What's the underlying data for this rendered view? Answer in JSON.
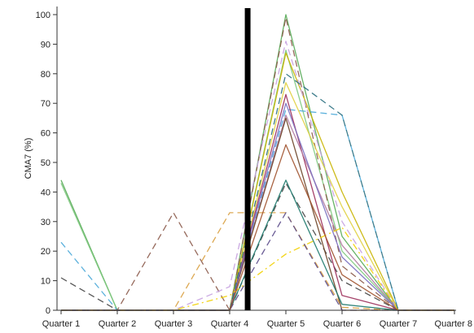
{
  "chart_data": {
    "type": "line",
    "title": "",
    "xlabel": "",
    "ylabel": "CMA7 (%)",
    "categories": [
      "Quarter 1",
      "Quarter 2",
      "Quarter 3",
      "Quarter 4",
      "Quarter 5",
      "Quarter 6",
      "Quarter 7",
      "Quarter 8"
    ],
    "ylim": [
      0,
      100
    ],
    "yticks": [
      "0",
      "10",
      "20",
      "30",
      "40",
      "50",
      "60",
      "70",
      "80",
      "90",
      "100"
    ],
    "grid": false,
    "legend": "none",
    "divider_after_category": "Quarter 4",
    "divider_color": "#000000",
    "series": [
      {
        "values": [
          44,
          0,
          0,
          0,
          100,
          25,
          0,
          0
        ],
        "color": "#55aa55",
        "dash": "solid"
      },
      {
        "values": [
          43,
          0,
          0,
          0,
          88,
          20,
          0,
          0
        ],
        "color": "#7fc97f",
        "dash": "solid"
      },
      {
        "values": [
          23,
          0,
          0,
          0,
          68,
          66,
          0,
          0
        ],
        "color": "#4aa8d8",
        "dash": "dash"
      },
      {
        "values": [
          11,
          0,
          0,
          0,
          43,
          10,
          0,
          0
        ],
        "color": "#444444",
        "dash": "dash"
      },
      {
        "values": [
          0,
          0,
          33,
          0,
          99,
          15,
          0,
          0
        ],
        "color": "#8b5a4a",
        "dash": "dash"
      },
      {
        "values": [
          0,
          0,
          0,
          33,
          33,
          1,
          0,
          0
        ],
        "color": "#d9a040",
        "dash": "dash"
      },
      {
        "values": [
          0,
          0,
          0,
          0,
          87,
          40,
          0,
          0
        ],
        "color": "#c8b400",
        "dash": "solid"
      },
      {
        "values": [
          0,
          0,
          0,
          0,
          77,
          35,
          0,
          0
        ],
        "color": "#e0d040",
        "dash": "solid"
      },
      {
        "values": [
          0,
          0,
          0,
          0,
          73,
          5,
          0,
          0
        ],
        "color": "#9b2d5a",
        "dash": "solid"
      },
      {
        "values": [
          0,
          0,
          0,
          0,
          66,
          22,
          0,
          0
        ],
        "color": "#b07aa1",
        "dash": "solid"
      },
      {
        "values": [
          0,
          0,
          0,
          0,
          65,
          0,
          0,
          0
        ],
        "color": "#6b4226",
        "dash": "solid"
      },
      {
        "values": [
          0,
          0,
          0,
          0,
          70,
          18,
          0,
          0
        ],
        "color": "#7a6fc0",
        "dash": "solid"
      },
      {
        "values": [
          0,
          0,
          0,
          8,
          91,
          30,
          0,
          0
        ],
        "color": "#c5a0e0",
        "dash": "dash"
      },
      {
        "values": [
          0,
          0,
          0,
          0,
          44,
          2,
          0,
          0
        ],
        "color": "#1f7a6e",
        "dash": "solid"
      },
      {
        "values": [
          0,
          0,
          0,
          0,
          33,
          0,
          0,
          0
        ],
        "color": "#5a4a8a",
        "dash": "dash"
      },
      {
        "values": [
          0,
          0,
          0,
          5,
          19,
          28,
          0,
          0
        ],
        "color": "#f2d000",
        "dash": "dashdot"
      },
      {
        "values": [
          0,
          0,
          0,
          0,
          80,
          66,
          0,
          0
        ],
        "color": "#2a6f80",
        "dash": "dash"
      },
      {
        "values": [
          0,
          0,
          0,
          0,
          56,
          12,
          0,
          0
        ],
        "color": "#a0522d",
        "dash": "solid"
      }
    ]
  }
}
